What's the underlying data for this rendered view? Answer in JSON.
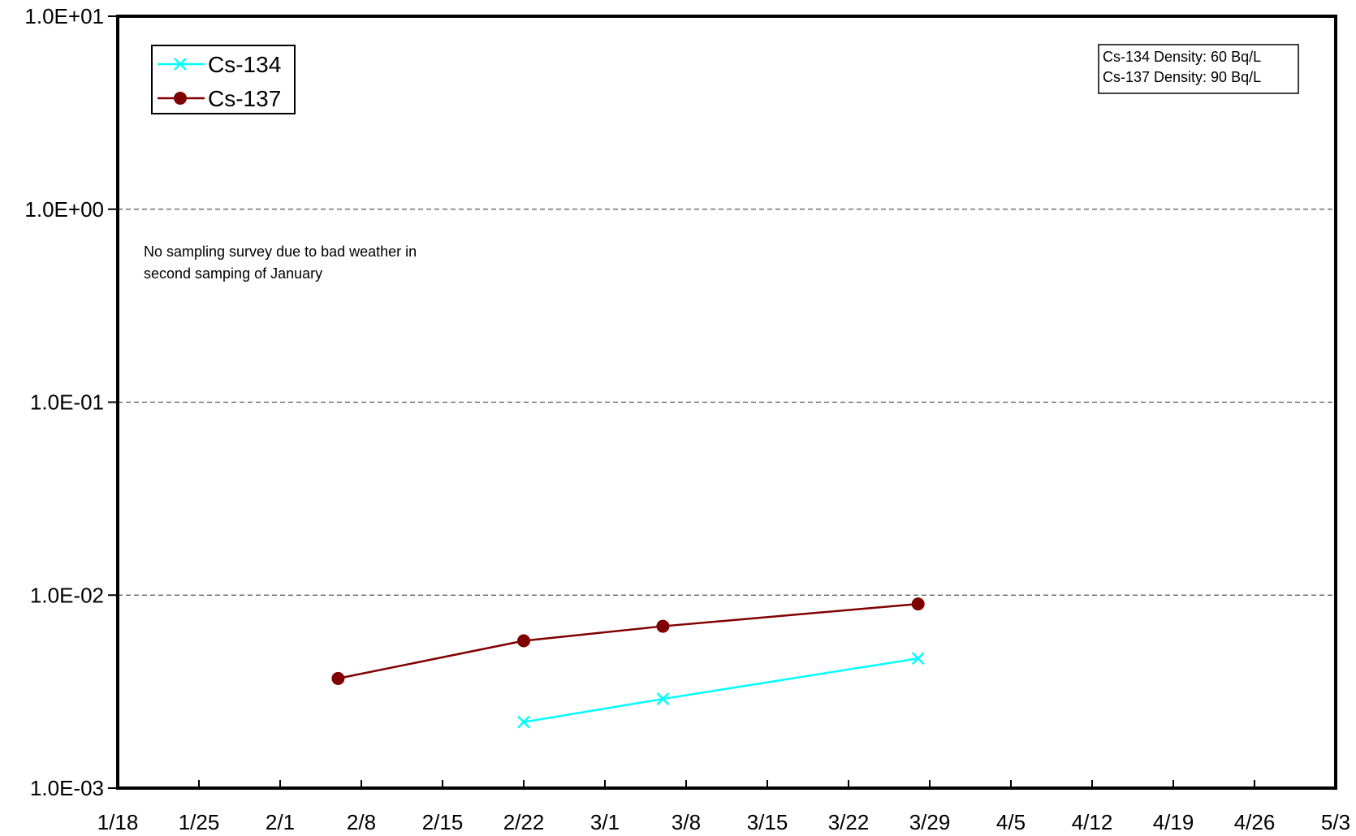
{
  "chart_data": {
    "type": "line",
    "title": "",
    "xlabel": "",
    "ylabel": "",
    "yscale": "log",
    "ylim": [
      0.001,
      10
    ],
    "y_tick_labels": [
      "1.0E+01",
      "1.0E+00",
      "1.0E-01",
      "1.0E-02",
      "1.0E-03"
    ],
    "x_tick_labels": [
      "1/18",
      "1/25",
      "2/1",
      "2/8",
      "2/15",
      "2/22",
      "3/1",
      "3/8",
      "3/15",
      "3/22",
      "3/29",
      "4/5",
      "4/12",
      "4/19",
      "4/26",
      "5/3"
    ],
    "grid": "horizontal dashed",
    "legend_position": "top-left",
    "series": [
      {
        "name": "Cs-134",
        "color": "#00FFFF",
        "marker": "x",
        "points": [
          {
            "x": "2/22",
            "y": 0.0022
          },
          {
            "x": "3/6",
            "y": 0.0029
          },
          {
            "x": "3/28",
            "y": 0.0047
          }
        ]
      },
      {
        "name": "Cs-137",
        "color": "#800000",
        "marker": "circle",
        "points": [
          {
            "x": "2/6",
            "y": 0.0037
          },
          {
            "x": "2/22",
            "y": 0.0058
          },
          {
            "x": "3/6",
            "y": 0.0069
          },
          {
            "x": "3/28",
            "y": 0.009
          }
        ]
      }
    ],
    "annotations": {
      "note_line1": "No sampling survey due to bad weather in",
      "note_line2": "second samping of January",
      "density_line1": "Cs-134 Density: 60 Bq/L",
      "density_line2": "Cs-137 Density: 90 Bq/L"
    }
  }
}
